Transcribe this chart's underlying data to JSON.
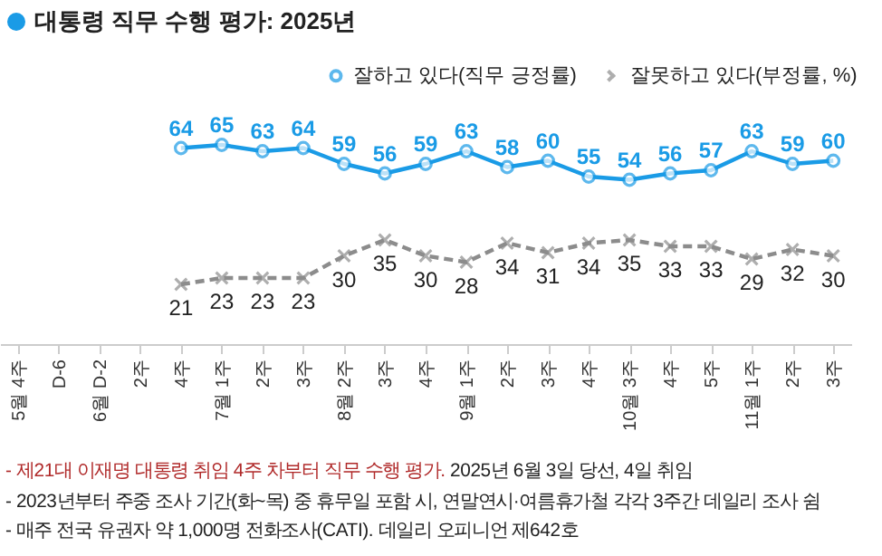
{
  "chart_data": {
    "type": "line",
    "title": "대통령 직무 수행 평가: 2025년",
    "categories": [
      "5월 4주",
      "D-6",
      "6월 D-2",
      "2주",
      "4주",
      "7월 1주",
      "2주",
      "3주",
      "8월 2주",
      "3주",
      "4주",
      "9월 1주",
      "2주",
      "3주",
      "4주",
      "10월 3주",
      "4주",
      "5주",
      "11월 1주",
      "2주",
      "3주"
    ],
    "series": [
      {
        "name": "잘하고 있다(직무 긍정률)",
        "color": "#1a9be6",
        "marker": "circle",
        "line_style": "solid",
        "values": [
          null,
          null,
          null,
          null,
          64,
          65,
          63,
          64,
          59,
          56,
          59,
          63,
          58,
          60,
          55,
          54,
          56,
          57,
          63,
          59,
          60
        ]
      },
      {
        "name": "잘못하고 있다(부정률, %)",
        "color": "#8c8c8c",
        "marker": "cross",
        "line_style": "dashed",
        "values": [
          null,
          null,
          null,
          null,
          21,
          23,
          23,
          23,
          30,
          35,
          30,
          28,
          34,
          31,
          34,
          35,
          33,
          33,
          29,
          32,
          30
        ]
      }
    ],
    "data_labels": true,
    "legend": "top right",
    "grid": false,
    "tick_labels": "x",
    "annotations": [
      "- 제21대 이재명 대통령 취임 4주 차부터 직무 수행 평가.",
      "2025년 6월 3일 당선, 4일 취임",
      "- 2023년부터 주중 조사 기간(화~목) 중 휴무일 포함 시, 연말연시·여름휴가철 각각 3주간 데일리 조사 쉼",
      "- 매주 전국 유권자 약 1,000명 전화조사(CATI). 데일리 오피니언 제642호"
    ]
  }
}
